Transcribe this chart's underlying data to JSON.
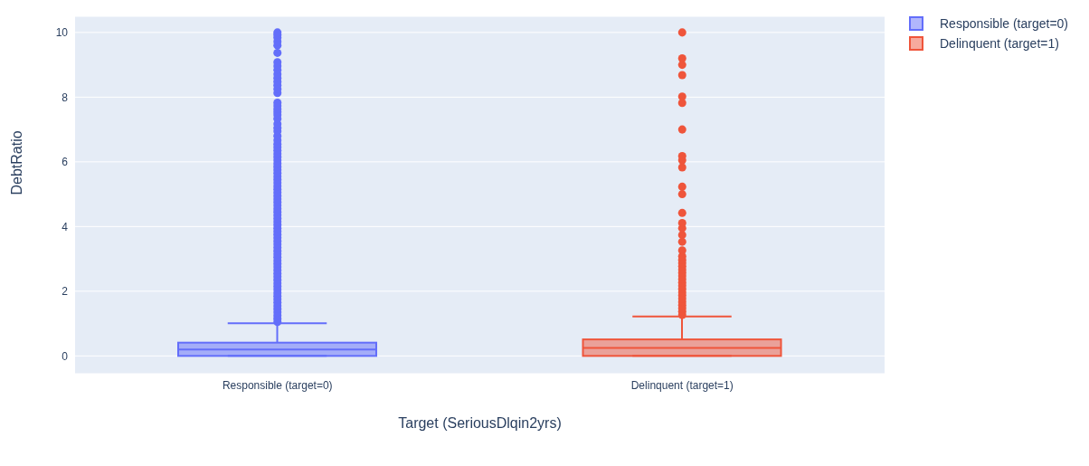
{
  "chart_data": {
    "type": "box",
    "xlabel": "Target (SeriousDlqin2yrs)",
    "ylabel": "DebtRatio",
    "categories": [
      "Responsible (target=0)",
      "Delinquent (target=1)"
    ],
    "series": [
      {
        "name": "Responsible (target=0)",
        "color": "#636efa",
        "boxes": [
          {
            "low": 0,
            "q1": 0,
            "median": 0.2,
            "q3": 0.41,
            "high": 1.01,
            "outliers": [
              1.05,
              1.15,
              1.25,
              1.35,
              1.45,
              1.55,
              1.65,
              1.75,
              1.85,
              1.95,
              2.05,
              2.15,
              2.25,
              2.35,
              2.45,
              2.55,
              2.65,
              2.75,
              2.85,
              2.95,
              3.05,
              3.15,
              3.25,
              3.35,
              3.45,
              3.55,
              3.65,
              3.75,
              3.85,
              3.95,
              4.05,
              4.15,
              4.25,
              4.35,
              4.45,
              4.55,
              4.65,
              4.75,
              4.85,
              4.95,
              5.05,
              5.15,
              5.25,
              5.35,
              5.45,
              5.55,
              5.65,
              5.75,
              5.85,
              5.95,
              6.05,
              6.15,
              6.25,
              6.35,
              6.45,
              6.55,
              6.67,
              6.8,
              6.95,
              7.05,
              7.17,
              7.33,
              7.45,
              7.54,
              7.63,
              7.73,
              7.83,
              8.13,
              8.25,
              8.37,
              8.48,
              8.59,
              8.71,
              8.84,
              8.96,
              9.08,
              9.37,
              9.6,
              9.72,
              9.84,
              9.93,
              10.0
            ]
          },
          null
        ]
      },
      {
        "name": "Delinquent (target=1)",
        "color": "#ef553b",
        "boxes": [
          null,
          {
            "low": 0,
            "q1": 0,
            "median": 0.25,
            "q3": 0.51,
            "high": 1.22,
            "outliers": [
              1.27,
              1.37,
              1.47,
              1.57,
              1.67,
              1.77,
              1.87,
              1.97,
              2.07,
              2.17,
              2.27,
              2.37,
              2.47,
              2.57,
              2.67,
              2.77,
              2.87,
              2.97,
              3.08,
              3.26,
              3.53,
              3.74,
              3.95,
              4.11,
              4.42,
              5.0,
              5.23,
              5.83,
              6.05,
              6.18,
              7.0,
              7.82,
              8.02,
              8.68,
              9.0,
              9.2,
              10.0
            ]
          }
        ]
      }
    ],
    "ylim": [
      -0.55,
      10.5
    ],
    "yticks": [
      0,
      2,
      4,
      6,
      8,
      10
    ],
    "grid": "y",
    "legend": "top right"
  }
}
